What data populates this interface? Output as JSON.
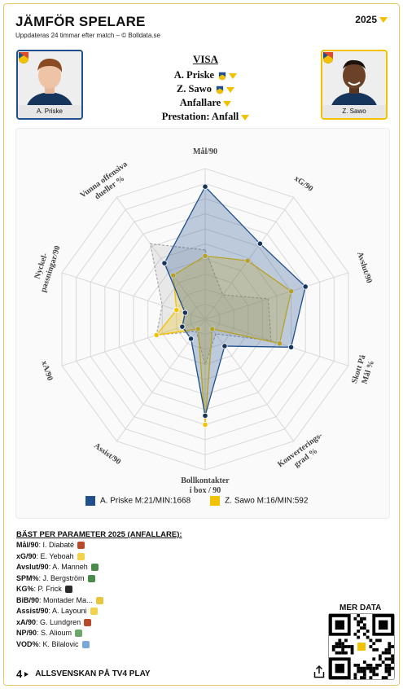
{
  "header": {
    "title": "JÄMFÖR SPELARE",
    "subtitle": "Uppdateras 24 timmar efter match – © Bolldata.se",
    "year": "2025"
  },
  "players": {
    "left": {
      "name": "A. Priske",
      "color": "#1f4f8c"
    },
    "right": {
      "name": "Z. Sawo",
      "color": "#f2c200"
    }
  },
  "visa": {
    "header": "VISA",
    "player1": "A. Priske",
    "player2": "Z. Sawo",
    "position": "Anfallare",
    "prestation": "Prestation: Anfall"
  },
  "chart_data": {
    "type": "radar",
    "axes": [
      "Mål/90",
      "xG/90",
      "Avslut/90",
      "Skott På Mål %",
      "Konverterings-grad %",
      "Bollkontakter i box / 90",
      "Assist/90",
      "xA/90",
      "Nyckel-passningar/90",
      "Vunna offensiva dueller %"
    ],
    "axis_label_lines": [
      [
        "Mål/90"
      ],
      [
        "xG/90"
      ],
      [
        "Avslut/90"
      ],
      [
        "Skott På",
        "Mål %"
      ],
      [
        "Konverterings-",
        "grad %"
      ],
      [
        "Bollkontakter",
        "i box / 90"
      ],
      [
        "Assist/90"
      ],
      [
        "xA/90"
      ],
      [
        "Nyckel-",
        "passningar/90"
      ],
      [
        "Vunna offensiva",
        "dueller %"
      ]
    ],
    "grid": true,
    "series": [
      {
        "name": "A. Priske M:21/MIN:1668",
        "color": "#1f4f8c",
        "values": [
          0.88,
          0.62,
          0.7,
          0.6,
          0.22,
          0.64,
          0.16,
          0.16,
          0.14,
          0.46
        ]
      },
      {
        "name": "Z. Sawo M:16/MIN:592",
        "color": "#f2c200",
        "values": [
          0.42,
          0.48,
          0.6,
          0.52,
          0.08,
          0.7,
          0.08,
          0.34,
          0.2,
          0.36
        ]
      },
      {
        "name": "",
        "color": "#aaaaaa",
        "values": [
          0.46,
          0.2,
          0.44,
          0.46,
          0.12,
          0.3,
          0.1,
          0.34,
          0.3,
          0.62
        ]
      }
    ],
    "legend_position": "bottom"
  },
  "best": {
    "header": "BÄST PER PARAMETER 2025 (ANFALLARE):",
    "rows": [
      {
        "param": "Mål/90",
        "player": "I. Diabaté",
        "badge": "#b84a2a"
      },
      {
        "param": "xG/90",
        "player": "E. Yeboah",
        "badge": "#f1d24a"
      },
      {
        "param": "Avslut/90",
        "player": "A. Manneh",
        "badge": "#4a8a4a"
      },
      {
        "param": "SPM%",
        "player": "J. Bergström",
        "badge": "#4a8a4a"
      },
      {
        "param": "KG%",
        "player": "P. Frick",
        "badge": "#2a2a2a"
      },
      {
        "param": "BiB/90",
        "player": "Montader Ma...",
        "badge": "#e8c640"
      },
      {
        "param": "Assist/90",
        "player": "A. Layouni",
        "badge": "#f1d24a"
      },
      {
        "param": "xA/90",
        "player": "G. Lundgren",
        "badge": "#b84a2a"
      },
      {
        "param": "NP/90",
        "player": "S. Alioum",
        "badge": "#6aa86a"
      },
      {
        "param": "VOD%",
        "player": "K. Bilalovic",
        "badge": "#7aa8d8"
      }
    ]
  },
  "mer_data": "MER DATA",
  "footer": {
    "logo": "4",
    "text": "ALLSVENSKAN PÅ TV4 PLAY"
  },
  "icons": {
    "share": "share-icon",
    "badge": "club-badge-icon",
    "dropdown": "chevron-down-icon"
  }
}
